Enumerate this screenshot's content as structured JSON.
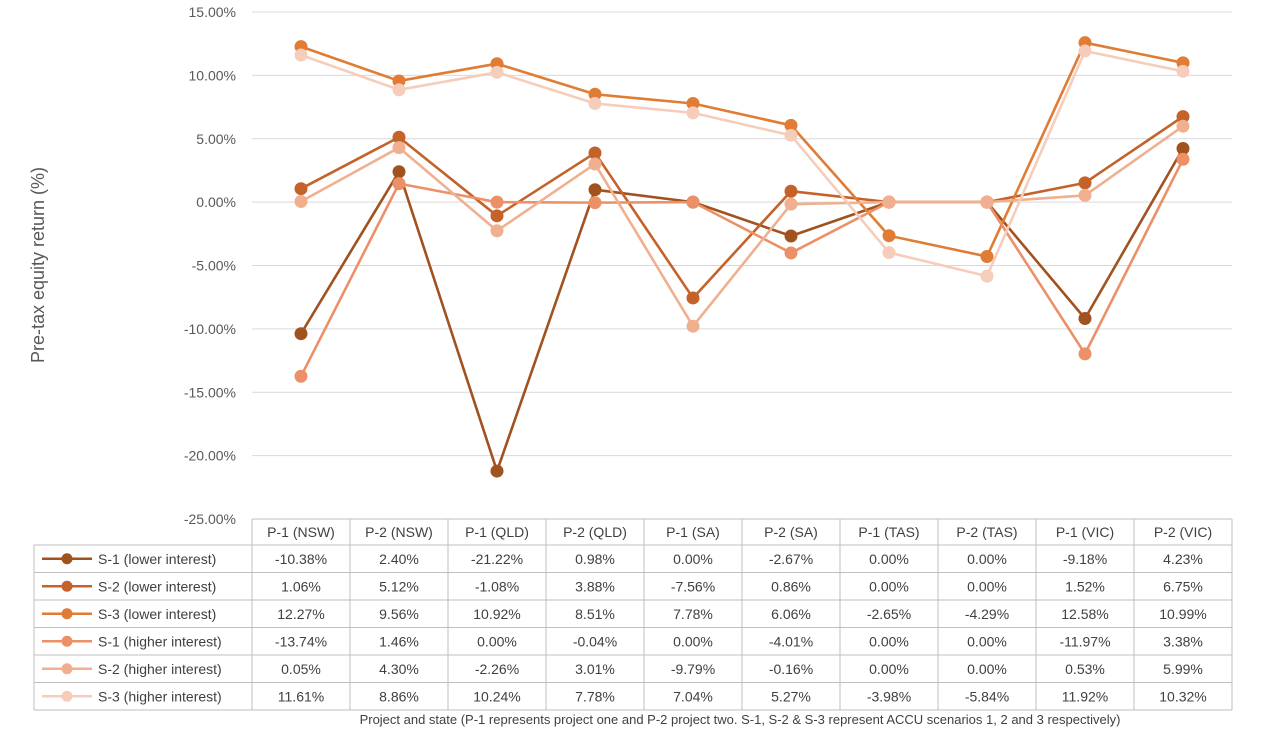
{
  "chart_data": {
    "type": "line",
    "categories": [
      "P-1 (NSW)",
      "P-2 (NSW)",
      "P-1 (QLD)",
      "P-2 (QLD)",
      "P-1 (SA)",
      "P-2 (SA)",
      "P-1 (TAS)",
      "P-2 (TAS)",
      "P-1 (VIC)",
      "P-2 (VIC)"
    ],
    "ylabel": "Pre-tax equity return (%)",
    "xlabel": "Project and state (P-1 represents project one and P-2 project two. S-1, S-2 & S-3 represent ACCU scenarios 1, 2 and 3 respectively)",
    "ylim": [
      -25,
      15
    ],
    "yticks": [
      15,
      10,
      5,
      0,
      -5,
      -10,
      -15,
      -20,
      -25
    ],
    "ytick_labels": [
      "15.00%",
      "10.00%",
      "5.00%",
      "0.00%",
      "-5.00%",
      "-10.00%",
      "-15.00%",
      "-20.00%",
      "-25.00%"
    ],
    "grid": true,
    "legend": "data-table-below",
    "series": [
      {
        "name": "S-1 (lower interest)",
        "color": "#A0521F",
        "values": [
          -10.38,
          2.4,
          -21.22,
          0.98,
          0.0,
          -2.67,
          0.0,
          0.0,
          -9.18,
          4.23
        ],
        "labels": [
          "-10.38%",
          "2.40%",
          "-21.22%",
          "0.98%",
          "0.00%",
          "-2.67%",
          "0.00%",
          "0.00%",
          "-9.18%",
          "4.23%"
        ]
      },
      {
        "name": "S-2 (lower interest)",
        "color": "#C4622A",
        "values": [
          1.06,
          5.12,
          -1.08,
          3.88,
          -7.56,
          0.86,
          0.0,
          0.0,
          1.52,
          6.75
        ],
        "labels": [
          "1.06%",
          "5.12%",
          "-1.08%",
          "3.88%",
          "-7.56%",
          "0.86%",
          "0.00%",
          "0.00%",
          "1.52%",
          "6.75%"
        ]
      },
      {
        "name": "S-3 (lower interest)",
        "color": "#E07C34",
        "values": [
          12.27,
          9.56,
          10.92,
          8.51,
          7.78,
          6.06,
          -2.65,
          -4.29,
          12.58,
          10.99
        ],
        "labels": [
          "12.27%",
          "9.56%",
          "10.92%",
          "8.51%",
          "7.78%",
          "6.06%",
          "-2.65%",
          "-4.29%",
          "12.58%",
          "10.99%"
        ]
      },
      {
        "name": "S-1 (higher interest)",
        "color": "#EC9068",
        "values": [
          -13.74,
          1.46,
          0.0,
          -0.04,
          0.0,
          -4.01,
          0.0,
          0.0,
          -11.97,
          3.38
        ],
        "labels": [
          "-13.74%",
          "1.46%",
          "0.00%",
          "-0.04%",
          "0.00%",
          "-4.01%",
          "0.00%",
          "0.00%",
          "-11.97%",
          "3.38%"
        ]
      },
      {
        "name": "S-2 (higher interest)",
        "color": "#F0B090",
        "values": [
          0.05,
          4.3,
          -2.26,
          3.01,
          -9.79,
          -0.16,
          0.0,
          0.0,
          0.53,
          5.99
        ],
        "labels": [
          "0.05%",
          "4.30%",
          "-2.26%",
          "3.01%",
          "-9.79%",
          "-0.16%",
          "0.00%",
          "0.00%",
          "0.53%",
          "5.99%"
        ]
      },
      {
        "name": "S-3 (higher interest)",
        "color": "#F6CDBA",
        "values": [
          11.61,
          8.86,
          10.24,
          7.78,
          7.04,
          5.27,
          -3.98,
          -5.84,
          11.92,
          10.32
        ],
        "labels": [
          "11.61%",
          "8.86%",
          "10.24%",
          "7.78%",
          "7.04%",
          "5.27%",
          "-3.98%",
          "-5.84%",
          "11.92%",
          "10.32%"
        ]
      }
    ]
  }
}
